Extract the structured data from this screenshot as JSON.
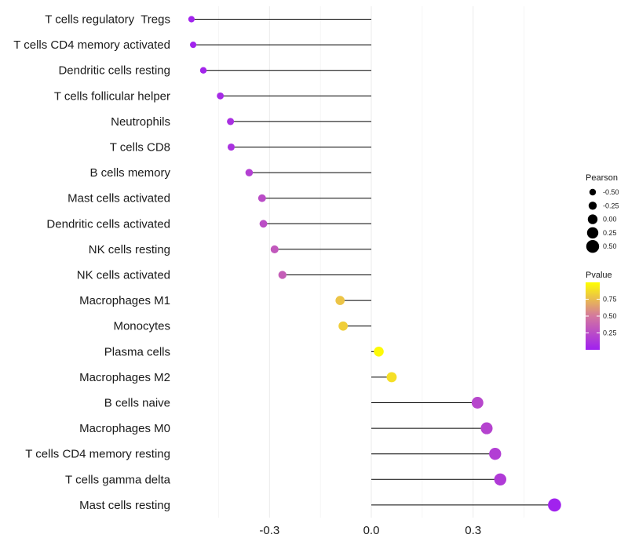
{
  "chart_data": {
    "type": "lollipop",
    "categories": [
      "T cells regulatory  Tregs",
      "T cells CD4 memory activated",
      "Dendritic cells resting",
      "T cells follicular helper",
      "Neutrophils",
      "T cells CD8",
      "B cells memory",
      "Mast cells activated",
      "Dendritic cells activated",
      "NK cells resting",
      "NK cells activated",
      "Macrophages M1",
      "Monocytes",
      "Plasma cells",
      "Macrophages M2",
      "B cells naive",
      "Macrophages M0",
      "T cells CD4 memory resting",
      "T cells gamma delta",
      "Mast cells resting"
    ],
    "values": [
      -0.53,
      -0.525,
      -0.495,
      -0.445,
      -0.415,
      -0.413,
      -0.36,
      -0.322,
      -0.318,
      -0.285,
      -0.262,
      -0.092,
      -0.083,
      0.022,
      0.06,
      0.313,
      0.34,
      0.365,
      0.38,
      0.54
    ],
    "pvalues": [
      0.02,
      0.02,
      0.03,
      0.06,
      0.09,
      0.1,
      0.18,
      0.25,
      0.26,
      0.32,
      0.35,
      0.78,
      0.82,
      0.98,
      0.88,
      0.22,
      0.2,
      0.17,
      0.15,
      0.01
    ],
    "x_ticks": [
      -0.3,
      0.0,
      0.3
    ],
    "x_tick_labels": [
      "-0.3",
      "0.0",
      "0.3"
    ],
    "xlim": [
      -0.6,
      0.75
    ],
    "xlabel": "",
    "ylabel": "",
    "legend_size": {
      "title": "Pearson",
      "values": [
        -0.5,
        -0.25,
        0.0,
        0.25,
        0.5
      ],
      "labels": [
        "-0.50",
        "-0.25",
        "0.00",
        "0.25",
        "0.50"
      ]
    },
    "legend_color": {
      "title": "Pvalue",
      "ticks": [
        0.25,
        0.5,
        0.75
      ],
      "tick_labels": [
        "0.25",
        "0.50",
        "0.75"
      ],
      "range": [
        0.0,
        1.0
      ],
      "low_color": "#a020f0",
      "mid_color": "#d4789e",
      "high_color": "#ffff00"
    },
    "line_color": "#000000",
    "grid": true
  }
}
